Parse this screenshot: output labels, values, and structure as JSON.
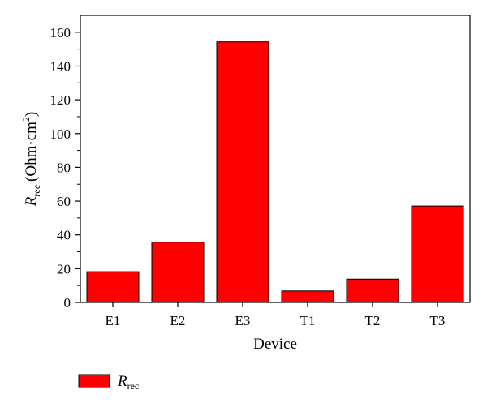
{
  "chart_data": {
    "type": "bar",
    "categories": [
      "E1",
      "E2",
      "E3",
      "T1",
      "T2",
      "T3"
    ],
    "series": [
      {
        "name": "R_rec",
        "values": [
          18.2,
          35.7,
          154.3,
          6.8,
          13.8,
          57.1
        ]
      }
    ],
    "xlabel": "Device",
    "ylabel": {
      "symbol": "R",
      "subscript": "rec",
      "unit_prefix": "(Ohm·cm",
      "unit_superscript": "2",
      "unit_suffix": ")"
    },
    "legend": {
      "symbol": "R",
      "subscript": "rec",
      "position": "bottom-left"
    },
    "ylim": [
      0,
      170
    ],
    "yticks": [
      0,
      20,
      40,
      60,
      80,
      100,
      120,
      140,
      160
    ],
    "grid": false,
    "bar_color": "#ff0000",
    "border_color": "#000000"
  }
}
